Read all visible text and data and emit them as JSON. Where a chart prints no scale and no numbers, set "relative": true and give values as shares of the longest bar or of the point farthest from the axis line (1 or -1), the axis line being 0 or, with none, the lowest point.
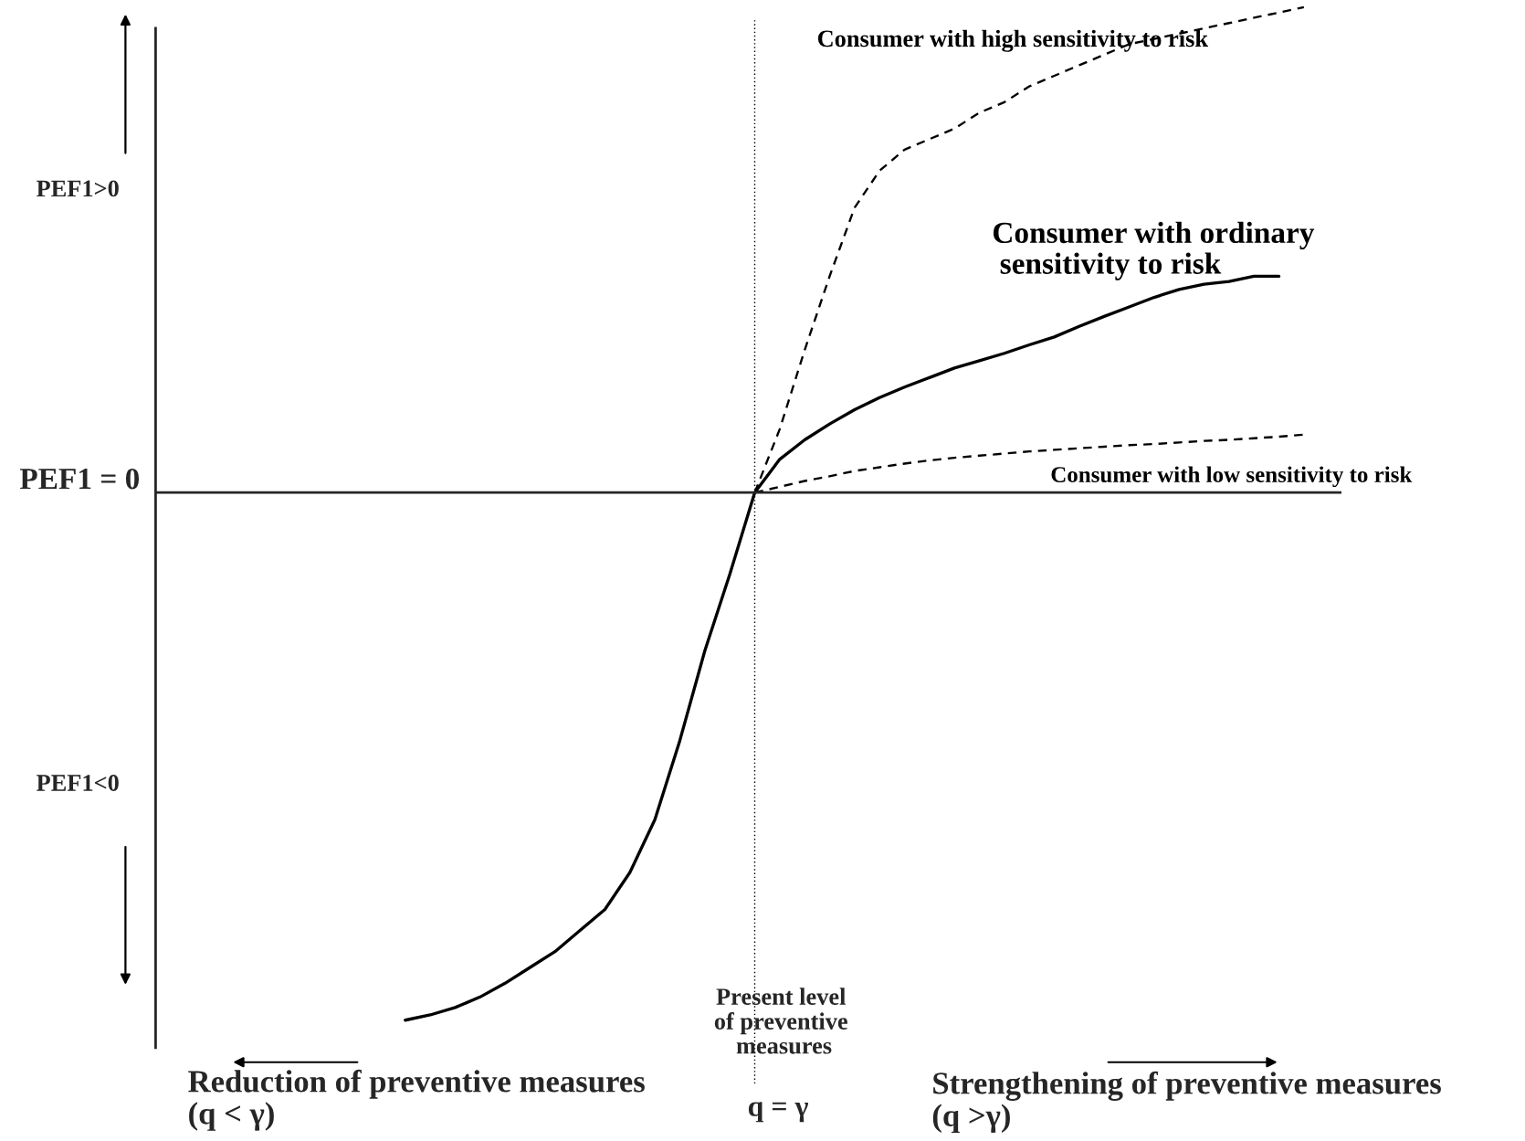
{
  "chart_data": {
    "type": "line",
    "relative": true,
    "categories": [
      null,
      null,
      null,
      null,
      null,
      null,
      null,
      null,
      null,
      null,
      null,
      null,
      null,
      null,
      null,
      null,
      null,
      null,
      null,
      null,
      null,
      null,
      null,
      null,
      null,
      null,
      null,
      null,
      null,
      null,
      null,
      null,
      null,
      null,
      null,
      null,
      null,
      null,
      null,
      null,
      null,
      null,
      null,
      null,
      null,
      null,
      null,
      null,
      null
    ],
    "series": [
      {
        "name": "Consumer with high sensitivity to risk",
        "color": "#000000",
        "line_style": "dashed",
        "values": [
          null,
          null,
          null,
          null,
          null,
          null,
          null,
          null,
          null,
          null,
          null,
          null,
          null,
          null,
          null,
          null,
          null,
          null,
          null,
          null,
          null,
          null,
          null,
          null,
          0,
          0.12,
          0.27,
          0.41,
          0.54,
          0.61,
          0.65,
          0.67,
          0.69,
          0.72,
          0.74,
          0.77,
          0.79,
          0.81,
          0.83,
          0.85,
          0.86,
          0.87,
          0.88,
          0.89,
          0.9,
          0.91,
          0.92,
          null,
          null
        ]
      },
      {
        "name": "Consumer with ordinary\n sensitivity to risk",
        "color": "#000000",
        "line_style": "solid",
        "values": [
          null,
          null,
          null,
          null,
          null,
          null,
          null,
          null,
          null,
          null,
          -1.0,
          -0.99,
          -0.976,
          -0.956,
          -0.93,
          -0.9,
          -0.87,
          -0.83,
          -0.79,
          -0.72,
          -0.62,
          -0.47,
          -0.3,
          -0.155,
          0,
          0.063,
          0.1,
          0.13,
          0.157,
          0.18,
          0.2,
          0.218,
          0.236,
          0.25,
          0.264,
          0.28,
          0.295,
          0.315,
          0.334,
          0.352,
          0.37,
          0.385,
          0.395,
          0.4,
          0.41,
          0.41,
          null,
          null,
          null
        ]
      },
      {
        "name": "Consumer with low sensitivity to risk",
        "color": "#000000",
        "line_style": "dashed",
        "values": [
          null,
          null,
          null,
          null,
          null,
          null,
          null,
          null,
          null,
          null,
          null,
          null,
          null,
          null,
          null,
          null,
          null,
          null,
          null,
          null,
          null,
          null,
          null,
          null,
          0,
          0.011,
          0.022,
          0.031,
          0.041,
          0.048,
          0.055,
          0.061,
          0.066,
          0.07,
          0.074,
          0.078,
          0.081,
          0.084,
          0.087,
          0.09,
          0.092,
          0.095,
          0.098,
          0.1,
          0.103,
          0.106,
          0.11,
          null,
          null
        ]
      }
    ],
    "annotations": [
      "PEF1>0",
      "PEF1 = 0",
      "PEF1<0",
      "Present level\nof preventive\n measures",
      "q = γ",
      "Reduction of preventive measures\n(q < γ)",
      "Strengthening of preventive measures\n(q >γ)"
    ],
    "legend": false,
    "grid": false
  }
}
